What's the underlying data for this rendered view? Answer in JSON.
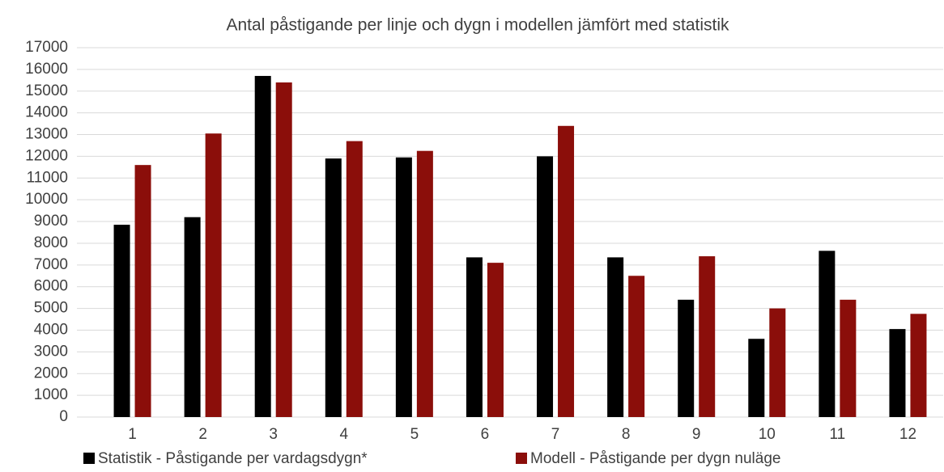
{
  "chart_data": {
    "type": "bar",
    "title": "Antal påstigande per linje och dygn i modellen jämfört med statistik",
    "categories": [
      "1",
      "2",
      "3",
      "4",
      "5",
      "6",
      "7",
      "8",
      "9",
      "10",
      "11",
      "12"
    ],
    "series": [
      {
        "name": "Statistik - Påstigande per vardagsdygn*",
        "color": "#000000",
        "values": [
          8850,
          9200,
          15700,
          11900,
          11950,
          7350,
          12000,
          7350,
          5400,
          3600,
          7650,
          4050
        ]
      },
      {
        "name": "Modell - Påstigande per dygn nuläge",
        "color": "#8b0e0a",
        "values": [
          11600,
          13050,
          15400,
          12700,
          12250,
          7100,
          13400,
          6500,
          7400,
          5000,
          5400,
          4750
        ]
      }
    ],
    "ylim": [
      0,
      17000
    ],
    "yticks": [
      0,
      1000,
      2000,
      3000,
      4000,
      5000,
      6000,
      7000,
      8000,
      9000,
      10000,
      11000,
      12000,
      13000,
      14000,
      15000,
      16000,
      17000
    ],
    "grid": true,
    "legend": "bottom"
  }
}
